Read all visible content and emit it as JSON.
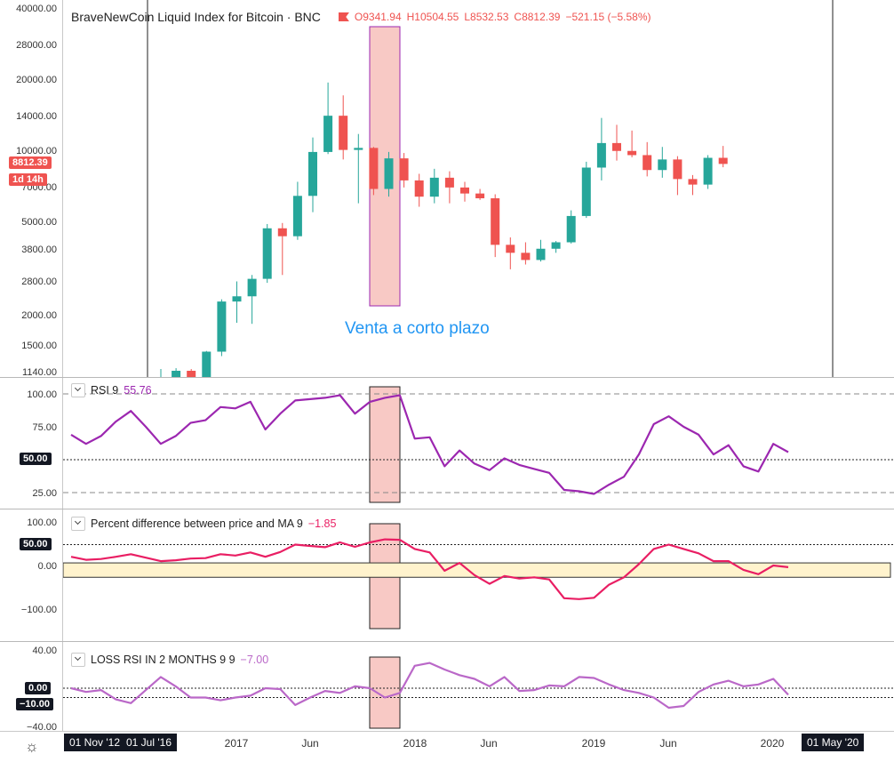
{
  "header": {
    "symbol_title": "BraveNewCoin Liquid Index for Bitcoin · BNC",
    "open": "O9341.94",
    "high": "H10504.55",
    "low": "L8532.53",
    "close": "C8812.39",
    "change": "−521.15 (−5.58%)"
  },
  "price_axis": {
    "ticks": [
      "40000.00",
      "28000.00",
      "20000.00",
      "14000.00",
      "10000.00",
      "7000.00",
      "5000.00",
      "3800.00",
      "2800.00",
      "2000.00",
      "1500.00",
      "1140.00"
    ],
    "last_price": "8812.39",
    "countdown": "1d 14h"
  },
  "annotation": {
    "text": "Venta a corto plazo"
  },
  "rsi": {
    "title": "RSI 9",
    "value": "55.76",
    "ticks": [
      "100.00",
      "75.00",
      "25.00"
    ],
    "badge": "50.00",
    "color": "#9c27b0"
  },
  "pct": {
    "title": "Percent difference between price and MA 9",
    "value": "−1.85",
    "ticks": [
      "100.00",
      "0.00",
      "−100.00"
    ],
    "badge": "50.00",
    "color": "#e91e63"
  },
  "loss": {
    "title": "LOSS RSI IN 2 MONTHS 9 9",
    "value": "−7.00",
    "ticks": [
      "40.00",
      "−40.00"
    ],
    "badges": [
      "0.00",
      "−10.00"
    ],
    "color": "#ba68c8"
  },
  "time_axis": {
    "start_badges": [
      "01 Nov '12",
      "01 Jul '16"
    ],
    "labels": [
      "2017",
      "Jun",
      "2018",
      "Jun",
      "2019",
      "Jun",
      "2020"
    ],
    "end_badge": "01 May '20"
  },
  "colors": {
    "up": "#26a69a",
    "down": "#ef5350",
    "highlight": "#f8c9c5"
  },
  "chart_data": [
    {
      "type": "candlestick",
      "title": "BraveNewCoin Liquid Index for Bitcoin · BNC",
      "scale": "log",
      "ylim": [
        1140,
        40000
      ],
      "candles": [
        {
          "o": 1080,
          "h": 1190,
          "l": 1070,
          "c": 1100
        },
        {
          "o": 1100,
          "h": 1200,
          "l": 1060,
          "c": 1170
        },
        {
          "o": 1170,
          "h": 1190,
          "l": 1080,
          "c": 1090
        },
        {
          "o": 1090,
          "h": 1420,
          "l": 1080,
          "c": 1410
        },
        {
          "o": 1410,
          "h": 2350,
          "l": 1350,
          "c": 2300
        },
        {
          "o": 2300,
          "h": 2800,
          "l": 1870,
          "c": 2420
        },
        {
          "o": 2420,
          "h": 2980,
          "l": 1850,
          "c": 2870
        },
        {
          "o": 2870,
          "h": 4900,
          "l": 2760,
          "c": 4700
        },
        {
          "o": 4700,
          "h": 4950,
          "l": 2980,
          "c": 4350
        },
        {
          "o": 4350,
          "h": 7400,
          "l": 4200,
          "c": 6450
        },
        {
          "o": 6450,
          "h": 11400,
          "l": 5500,
          "c": 9900
        },
        {
          "o": 9900,
          "h": 19500,
          "l": 9700,
          "c": 14100
        },
        {
          "o": 14100,
          "h": 17200,
          "l": 9200,
          "c": 10100
        },
        {
          "o": 10100,
          "h": 11800,
          "l": 6000,
          "c": 10300
        },
        {
          "o": 10300,
          "h": 10400,
          "l": 6500,
          "c": 6900
        },
        {
          "o": 6900,
          "h": 9900,
          "l": 6400,
          "c": 9300
        },
        {
          "o": 9300,
          "h": 9800,
          "l": 7000,
          "c": 7500
        },
        {
          "o": 7500,
          "h": 8000,
          "l": 5800,
          "c": 6400
        },
        {
          "o": 6400,
          "h": 8400,
          "l": 6000,
          "c": 7700
        },
        {
          "o": 7700,
          "h": 8200,
          "l": 6000,
          "c": 7000
        },
        {
          "o": 7000,
          "h": 7400,
          "l": 6100,
          "c": 6600
        },
        {
          "o": 6600,
          "h": 6900,
          "l": 6200,
          "c": 6300
        },
        {
          "o": 6300,
          "h": 6550,
          "l": 3550,
          "c": 4000
        },
        {
          "o": 4000,
          "h": 4300,
          "l": 3150,
          "c": 3700
        },
        {
          "o": 3700,
          "h": 4100,
          "l": 3300,
          "c": 3450
        },
        {
          "o": 3450,
          "h": 4200,
          "l": 3400,
          "c": 3850
        },
        {
          "o": 3850,
          "h": 4150,
          "l": 3700,
          "c": 4100
        },
        {
          "o": 4100,
          "h": 5600,
          "l": 4050,
          "c": 5300
        },
        {
          "o": 5300,
          "h": 9000,
          "l": 5200,
          "c": 8500
        },
        {
          "o": 8500,
          "h": 13800,
          "l": 7500,
          "c": 10800
        },
        {
          "o": 10800,
          "h": 12900,
          "l": 9100,
          "c": 10000
        },
        {
          "o": 10000,
          "h": 12200,
          "l": 9400,
          "c": 9600
        },
        {
          "o": 9600,
          "h": 10900,
          "l": 7800,
          "c": 8300
        },
        {
          "o": 8300,
          "h": 10400,
          "l": 7700,
          "c": 9200
        },
        {
          "o": 9200,
          "h": 9500,
          "l": 6500,
          "c": 7600
        },
        {
          "o": 7600,
          "h": 7900,
          "l": 6500,
          "c": 7200
        },
        {
          "o": 7200,
          "h": 9600,
          "l": 6900,
          "c": 9350
        },
        {
          "o": 9350,
          "h": 10500,
          "l": 8530,
          "c": 8810
        }
      ]
    },
    {
      "type": "line",
      "title": "RSI 9",
      "ylim": [
        0,
        110
      ],
      "series": [
        {
          "name": "RSI 9",
          "values": [
            69,
            62,
            68,
            79,
            87,
            75,
            62,
            68,
            78,
            80,
            90,
            89,
            94,
            73,
            85,
            95,
            96,
            97,
            99,
            85,
            94,
            97,
            99,
            66,
            67,
            45,
            57,
            47,
            42,
            51,
            46,
            43,
            40,
            27,
            26,
            24,
            31,
            37,
            54,
            77,
            83,
            75,
            69,
            54,
            61,
            45,
            41,
            62,
            55.76
          ]
        }
      ]
    },
    {
      "type": "line",
      "title": "Percent difference between price and MA 9",
      "ylim": [
        -160,
        120
      ],
      "series": [
        {
          "name": "Percent difference between price and MA 9",
          "values": [
            22,
            15,
            17,
            22,
            28,
            20,
            12,
            14,
            18,
            19,
            28,
            25,
            32,
            22,
            33,
            50,
            47,
            44,
            55,
            45,
            55,
            62,
            61,
            40,
            32,
            -10,
            8,
            -20,
            -40,
            -22,
            -28,
            -25,
            -30,
            -73,
            -75,
            -72,
            -42,
            -25,
            5,
            40,
            50,
            40,
            30,
            12,
            12,
            -8,
            -18,
            2,
            -1.85
          ]
        }
      ]
    },
    {
      "type": "line",
      "title": "LOSS RSI IN 2 MONTHS 9 9",
      "ylim": [
        -45,
        45
      ],
      "series": [
        {
          "name": "LOSS RSI IN 2 MONTHS 9 9",
          "values": [
            0,
            -4,
            -2,
            -12,
            -16,
            -2,
            12,
            2,
            -10,
            -10,
            -13,
            -10,
            -8,
            0,
            -1,
            -18,
            -10,
            -3,
            -5,
            2,
            0,
            -10,
            -5,
            24,
            27,
            20,
            14,
            10,
            2,
            12,
            -3,
            -2,
            3,
            2,
            12,
            11,
            4,
            -2,
            -5,
            -10,
            -21,
            -19,
            -4,
            4,
            8,
            2,
            4,
            10,
            -7
          ]
        }
      ]
    }
  ]
}
